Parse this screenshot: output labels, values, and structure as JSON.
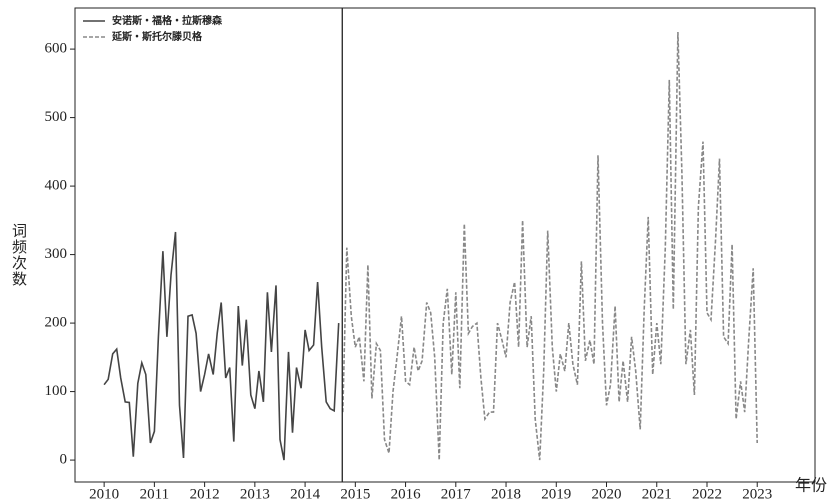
{
  "chart_data": {
    "type": "line",
    "xlabel": "年份",
    "ylabel": "词频次数",
    "xlim": [
      2009.42,
      2024.15
    ],
    "ylim": [
      -32,
      660
    ],
    "xticks": [
      2010,
      2011,
      2012,
      2013,
      2014,
      2015,
      2016,
      2017,
      2018,
      2019,
      2020,
      2021,
      2022,
      2023
    ],
    "yticks": [
      0,
      100,
      200,
      300,
      400,
      500,
      600
    ],
    "vline": 2014.74,
    "vline_color": "#222",
    "legend": "upper left",
    "series": [
      {
        "name": "安诺斯・福格・拉斯穆森",
        "color": "#444",
        "dash": false,
        "x": [
          2010,
          2010.08,
          2010.17,
          2010.25,
          2010.33,
          2010.42,
          2010.5,
          2010.58,
          2010.67,
          2010.75,
          2010.83,
          2010.92,
          2011,
          2011.08,
          2011.17,
          2011.25,
          2011.33,
          2011.42,
          2011.5,
          2011.58,
          2011.67,
          2011.75,
          2011.83,
          2011.92,
          2012,
          2012.08,
          2012.17,
          2012.25,
          2012.33,
          2012.42,
          2012.5,
          2012.58,
          2012.67,
          2012.75,
          2012.83,
          2012.92,
          2013,
          2013.08,
          2013.17,
          2013.25,
          2013.33,
          2013.42,
          2013.5,
          2013.58,
          2013.67,
          2013.75,
          2013.83,
          2013.92,
          2014,
          2014.08,
          2014.17,
          2014.25,
          2014.33,
          2014.42,
          2014.5,
          2014.58,
          2014.67
        ],
        "values": [
          110,
          118,
          155,
          162,
          120,
          85,
          84,
          5,
          112,
          142,
          125,
          25,
          42,
          180,
          305,
          180,
          270,
          333,
          80,
          3,
          210,
          212,
          185,
          100,
          125,
          155,
          125,
          185,
          230,
          120,
          135,
          27,
          225,
          138,
          205,
          95,
          75,
          130,
          85,
          245,
          158,
          255,
          30,
          0,
          158,
          40,
          135,
          105,
          190,
          160,
          168,
          260,
          165,
          85,
          75,
          72,
          200
        ]
      },
      {
        "name": "延斯・斯托尔滕贝格",
        "color": "#888",
        "dash": true,
        "x": [
          2014.75,
          2014.83,
          2014.92,
          2015,
          2015.08,
          2015.17,
          2015.25,
          2015.33,
          2015.42,
          2015.5,
          2015.58,
          2015.67,
          2015.75,
          2015.83,
          2015.92,
          2016,
          2016.08,
          2016.17,
          2016.25,
          2016.33,
          2016.42,
          2016.5,
          2016.58,
          2016.67,
          2016.75,
          2016.83,
          2016.92,
          2017,
          2017.08,
          2017.17,
          2017.25,
          2017.33,
          2017.42,
          2017.5,
          2017.58,
          2017.67,
          2017.75,
          2017.83,
          2017.92,
          2018,
          2018.08,
          2018.17,
          2018.25,
          2018.33,
          2018.42,
          2018.5,
          2018.58,
          2018.67,
          2018.75,
          2018.83,
          2018.92,
          2019,
          2019.08,
          2019.17,
          2019.25,
          2019.33,
          2019.42,
          2019.5,
          2019.58,
          2019.67,
          2019.75,
          2019.83,
          2019.92,
          2020,
          2020.08,
          2020.17,
          2020.25,
          2020.33,
          2020.42,
          2020.5,
          2020.58,
          2020.67,
          2020.75,
          2020.83,
          2020.92,
          2021,
          2021.08,
          2021.17,
          2021.25,
          2021.33,
          2021.42,
          2021.5,
          2021.58,
          2021.67,
          2021.75,
          2021.83,
          2021.92,
          2022,
          2022.08,
          2022.17,
          2022.25,
          2022.33,
          2022.42,
          2022.5,
          2022.58,
          2022.67,
          2022.75,
          2022.83,
          2022.92,
          2023
        ],
        "values": [
          70,
          310,
          210,
          165,
          180,
          115,
          285,
          90,
          170,
          160,
          30,
          10,
          100,
          150,
          210,
          115,
          110,
          165,
          130,
          145,
          230,
          215,
          150,
          0,
          200,
          250,
          125,
          245,
          105,
          345,
          185,
          195,
          200,
          120,
          60,
          70,
          70,
          200,
          175,
          150,
          230,
          260,
          165,
          350,
          165,
          210,
          60,
          0,
          130,
          335,
          165,
          100,
          155,
          130,
          200,
          140,
          110,
          290,
          145,
          175,
          140,
          445,
          200,
          80,
          110,
          225,
          85,
          145,
          85,
          180,
          130,
          45,
          220,
          355,
          125,
          200,
          140,
          310,
          555,
          220,
          625,
          420,
          140,
          190,
          95,
          370,
          465,
          215,
          205,
          320,
          440,
          180,
          170,
          315,
          60,
          115,
          70,
          175,
          280,
          25
        ]
      }
    ]
  }
}
